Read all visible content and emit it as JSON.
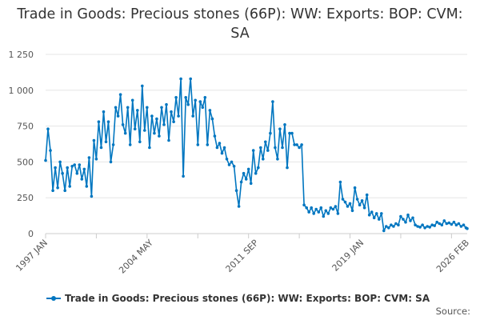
{
  "title": "Trade in Goods: Precious stones (66P): WW: Exports: BOP: CVM: SA",
  "legend_label": "Trade in Goods: Precious stones (66P): WW: Exports: BOP: CVM: SA",
  "source_label": "Source:",
  "colors": {
    "series": "#0076c0",
    "grid": "#e6e6e6",
    "axis": "#cccccc"
  },
  "chart_data": {
    "type": "line",
    "title": "Trade in Goods: Precious stones (66P): WW: Exports: BOP: CVM: SA",
    "xlabel": "",
    "ylabel": "",
    "ylim": [
      0,
      1250
    ],
    "yticks": [
      0,
      250,
      500,
      750,
      1000,
      1250
    ],
    "ytick_labels": [
      "0",
      "250",
      "500",
      "750",
      "1 000",
      "1 250"
    ],
    "x_range": [
      "1997-01",
      "2026-02"
    ],
    "xtick_labels": [
      "1997 JAN",
      "2004 MAY",
      "2011 SEP",
      "2019 JAN",
      "2026 FEB"
    ],
    "grid": true,
    "legend_position": "bottom",
    "series": [
      {
        "name": "Trade in Goods: Precious stones (66P): WW: Exports: BOP: CVM: SA",
        "points": [
          [
            "1997-01",
            510
          ],
          [
            "1997-03",
            730
          ],
          [
            "1997-05",
            580
          ],
          [
            "1997-07",
            300
          ],
          [
            "1997-09",
            460
          ],
          [
            "1997-11",
            320
          ],
          [
            "1998-01",
            500
          ],
          [
            "1998-03",
            420
          ],
          [
            "1998-05",
            300
          ],
          [
            "1998-07",
            460
          ],
          [
            "1998-09",
            330
          ],
          [
            "1998-11",
            470
          ],
          [
            "1999-01",
            480
          ],
          [
            "1999-03",
            420
          ],
          [
            "1999-05",
            480
          ],
          [
            "1999-07",
            380
          ],
          [
            "1999-09",
            450
          ],
          [
            "1999-11",
            330
          ],
          [
            "2000-01",
            530
          ],
          [
            "2000-03",
            260
          ],
          [
            "2000-05",
            650
          ],
          [
            "2000-07",
            520
          ],
          [
            "2000-09",
            780
          ],
          [
            "2000-11",
            600
          ],
          [
            "2001-01",
            850
          ],
          [
            "2001-03",
            640
          ],
          [
            "2001-05",
            780
          ],
          [
            "2001-07",
            500
          ],
          [
            "2001-09",
            620
          ],
          [
            "2001-11",
            880
          ],
          [
            "2002-01",
            820
          ],
          [
            "2002-03",
            970
          ],
          [
            "2002-05",
            760
          ],
          [
            "2002-07",
            700
          ],
          [
            "2002-09",
            880
          ],
          [
            "2002-11",
            620
          ],
          [
            "2003-01",
            930
          ],
          [
            "2003-03",
            730
          ],
          [
            "2003-05",
            860
          ],
          [
            "2003-07",
            640
          ],
          [
            "2003-09",
            1030
          ],
          [
            "2003-11",
            720
          ],
          [
            "2004-01",
            880
          ],
          [
            "2004-03",
            600
          ],
          [
            "2004-05",
            820
          ],
          [
            "2004-07",
            700
          ],
          [
            "2004-09",
            800
          ],
          [
            "2004-11",
            680
          ],
          [
            "2005-01",
            880
          ],
          [
            "2005-03",
            760
          ],
          [
            "2005-05",
            900
          ],
          [
            "2005-07",
            650
          ],
          [
            "2005-09",
            850
          ],
          [
            "2005-11",
            780
          ],
          [
            "2006-01",
            950
          ],
          [
            "2006-03",
            820
          ],
          [
            "2006-05",
            1080
          ],
          [
            "2006-07",
            400
          ],
          [
            "2006-09",
            950
          ],
          [
            "2006-11",
            900
          ],
          [
            "2007-01",
            1080
          ],
          [
            "2007-03",
            820
          ],
          [
            "2007-05",
            930
          ],
          [
            "2007-07",
            620
          ],
          [
            "2007-09",
            920
          ],
          [
            "2007-11",
            880
          ],
          [
            "2008-01",
            950
          ],
          [
            "2008-03",
            620
          ],
          [
            "2008-05",
            860
          ],
          [
            "2008-07",
            800
          ],
          [
            "2008-09",
            680
          ],
          [
            "2008-11",
            600
          ],
          [
            "2009-01",
            630
          ],
          [
            "2009-03",
            560
          ],
          [
            "2009-05",
            600
          ],
          [
            "2009-07",
            520
          ],
          [
            "2009-09",
            480
          ],
          [
            "2009-11",
            500
          ],
          [
            "2010-01",
            470
          ],
          [
            "2010-03",
            300
          ],
          [
            "2010-05",
            190
          ],
          [
            "2010-07",
            360
          ],
          [
            "2010-09",
            420
          ],
          [
            "2010-11",
            380
          ],
          [
            "2011-01",
            450
          ],
          [
            "2011-03",
            350
          ],
          [
            "2011-05",
            580
          ],
          [
            "2011-07",
            420
          ],
          [
            "2011-09",
            460
          ],
          [
            "2011-11",
            600
          ],
          [
            "2012-01",
            520
          ],
          [
            "2012-03",
            640
          ],
          [
            "2012-05",
            580
          ],
          [
            "2012-07",
            700
          ],
          [
            "2012-09",
            920
          ],
          [
            "2012-11",
            600
          ],
          [
            "2013-01",
            520
          ],
          [
            "2013-03",
            730
          ],
          [
            "2013-05",
            600
          ],
          [
            "2013-07",
            760
          ],
          [
            "2013-09",
            460
          ],
          [
            "2013-11",
            700
          ],
          [
            "2014-01",
            700
          ],
          [
            "2014-03",
            620
          ],
          [
            "2014-05",
            620
          ],
          [
            "2014-07",
            600
          ],
          [
            "2014-09",
            620
          ],
          [
            "2014-11",
            200
          ],
          [
            "2015-01",
            180
          ],
          [
            "2015-03",
            150
          ],
          [
            "2015-05",
            180
          ],
          [
            "2015-07",
            140
          ],
          [
            "2015-09",
            170
          ],
          [
            "2015-11",
            150
          ],
          [
            "2016-01",
            180
          ],
          [
            "2016-03",
            120
          ],
          [
            "2016-05",
            160
          ],
          [
            "2016-07",
            140
          ],
          [
            "2016-09",
            180
          ],
          [
            "2016-11",
            170
          ],
          [
            "2017-01",
            190
          ],
          [
            "2017-03",
            140
          ],
          [
            "2017-05",
            360
          ],
          [
            "2017-07",
            240
          ],
          [
            "2017-09",
            220
          ],
          [
            "2017-11",
            190
          ],
          [
            "2018-01",
            210
          ],
          [
            "2018-03",
            160
          ],
          [
            "2018-05",
            320
          ],
          [
            "2018-07",
            240
          ],
          [
            "2018-09",
            200
          ],
          [
            "2018-11",
            230
          ],
          [
            "2019-01",
            180
          ],
          [
            "2019-03",
            270
          ],
          [
            "2019-05",
            130
          ],
          [
            "2019-07",
            150
          ],
          [
            "2019-09",
            110
          ],
          [
            "2019-11",
            140
          ],
          [
            "2020-01",
            100
          ],
          [
            "2020-03",
            140
          ],
          [
            "2020-05",
            20
          ],
          [
            "2020-07",
            50
          ],
          [
            "2020-09",
            40
          ],
          [
            "2020-11",
            60
          ],
          [
            "2021-01",
            50
          ],
          [
            "2021-03",
            70
          ],
          [
            "2021-05",
            60
          ],
          [
            "2021-07",
            120
          ],
          [
            "2021-09",
            100
          ],
          [
            "2021-11",
            80
          ],
          [
            "2022-01",
            130
          ],
          [
            "2022-03",
            90
          ],
          [
            "2022-05",
            110
          ],
          [
            "2022-07",
            60
          ],
          [
            "2022-09",
            50
          ],
          [
            "2022-11",
            45
          ],
          [
            "2023-01",
            60
          ],
          [
            "2023-03",
            40
          ],
          [
            "2023-05",
            50
          ],
          [
            "2023-07",
            45
          ],
          [
            "2023-09",
            60
          ],
          [
            "2023-11",
            55
          ],
          [
            "2024-01",
            80
          ],
          [
            "2024-03",
            70
          ],
          [
            "2024-05",
            60
          ],
          [
            "2024-07",
            90
          ],
          [
            "2024-09",
            70
          ],
          [
            "2024-11",
            75
          ],
          [
            "2025-01",
            65
          ],
          [
            "2025-03",
            80
          ],
          [
            "2025-05",
            60
          ],
          [
            "2025-07",
            70
          ],
          [
            "2025-09",
            50
          ],
          [
            "2025-11",
            60
          ],
          [
            "2026-01",
            40
          ],
          [
            "2026-02",
            35
          ]
        ]
      }
    ]
  }
}
